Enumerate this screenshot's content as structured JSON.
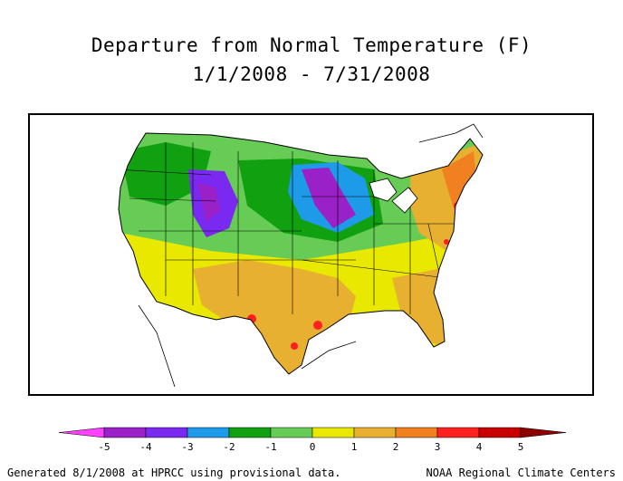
{
  "title_line1": "Departure from Normal Temperature (F)",
  "title_line2": "1/1/2008 - 7/31/2008",
  "legend": {
    "ticks": [
      "-5",
      "-4",
      "-3",
      "-2",
      "-1",
      "0",
      "1",
      "2",
      "3",
      "4",
      "5"
    ],
    "colors": [
      "#ff40ff",
      "#9a20c8",
      "#7a2af0",
      "#1e9be8",
      "#10a010",
      "#66cc55",
      "#e8e800",
      "#e8b030",
      "#f08020",
      "#ff2020",
      "#c80000",
      "#8b0000"
    ]
  },
  "footer_left": "Generated 8/1/2008 at HPRCC using provisional data.",
  "footer_right": "NOAA Regional Climate Centers"
}
